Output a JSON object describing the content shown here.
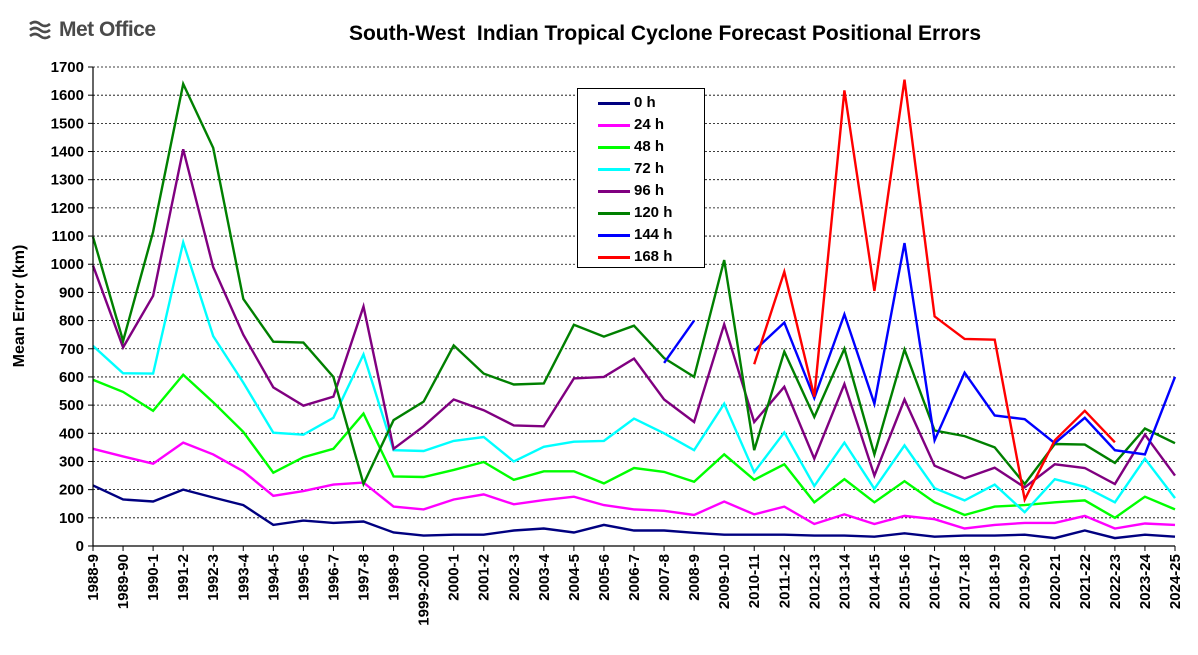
{
  "logo": {
    "text": "Met Office"
  },
  "chart_data": {
    "type": "line",
    "title": "South-West  Indian Tropical Cyclone Forecast Positional Errors",
    "xlabel": "",
    "ylabel": "Mean Error (km)",
    "ylim": [
      0,
      1700
    ],
    "yticks": [
      0,
      100,
      200,
      300,
      400,
      500,
      600,
      700,
      800,
      900,
      1000,
      1100,
      1200,
      1300,
      1400,
      1500,
      1600,
      1700
    ],
    "grid": true,
    "legend_position": "top-center",
    "categories": [
      "1988-9",
      "1989-90",
      "1990-1",
      "1991-2",
      "1992-3",
      "1993-4",
      "1994-5",
      "1995-6",
      "1996-7",
      "1997-8",
      "1998-9",
      "1999-2000",
      "2000-1",
      "2001-2",
      "2002-3",
      "2003-4",
      "2004-5",
      "2005-6",
      "2006-7",
      "2007-8",
      "2008-9",
      "2009-10",
      "2010-11",
      "2011-12",
      "2012-13",
      "2013-14",
      "2014-15",
      "2015-16",
      "2016-17",
      "2017-18",
      "2018-19",
      "2019-20",
      "2020-21",
      "2021-22",
      "2022-23",
      "2023-24",
      "2024-25"
    ],
    "series": [
      {
        "name": "0 h",
        "color": "#000080",
        "values": [
          215,
          165,
          158,
          200,
          172,
          145,
          75,
          90,
          82,
          87,
          48,
          37,
          40,
          40,
          55,
          62,
          48,
          75,
          55,
          55,
          47,
          40,
          40,
          40,
          37,
          37,
          33,
          45,
          33,
          37,
          37,
          40,
          28,
          55,
          28,
          40,
          33
        ]
      },
      {
        "name": "24 h",
        "color": "#FF00FF",
        "values": [
          345,
          318,
          292,
          367,
          325,
          265,
          178,
          195,
          218,
          225,
          140,
          130,
          165,
          183,
          148,
          163,
          175,
          145,
          130,
          125,
          110,
          158,
          112,
          140,
          78,
          112,
          78,
          107,
          95,
          62,
          75,
          82,
          82,
          107,
          62,
          80,
          75
        ]
      },
      {
        "name": "48 h",
        "color": "#00FF00",
        "values": [
          590,
          547,
          480,
          608,
          510,
          405,
          260,
          315,
          345,
          470,
          247,
          245,
          270,
          298,
          235,
          265,
          265,
          222,
          277,
          263,
          228,
          325,
          235,
          290,
          155,
          237,
          155,
          230,
          155,
          110,
          140,
          145,
          155,
          162,
          100,
          175,
          130
        ]
      },
      {
        "name": "72 h",
        "color": "#00FFFF",
        "values": [
          710,
          613,
          612,
          1078,
          745,
          580,
          402,
          395,
          455,
          680,
          340,
          337,
          373,
          387,
          300,
          352,
          370,
          373,
          452,
          400,
          340,
          505,
          262,
          403,
          213,
          367,
          203,
          357,
          205,
          162,
          218,
          120,
          237,
          210,
          155,
          310,
          170
        ]
      },
      {
        "name": "96 h",
        "color": "#800080",
        "values": [
          995,
          705,
          888,
          1408,
          990,
          750,
          563,
          498,
          530,
          850,
          345,
          425,
          520,
          482,
          428,
          425,
          595,
          600,
          665,
          520,
          440,
          787,
          440,
          565,
          310,
          575,
          250,
          520,
          285,
          240,
          278,
          208,
          290,
          277,
          220,
          395,
          250
        ]
      },
      {
        "name": "120 h",
        "color": "#008000",
        "values": [
          1097,
          728,
          1115,
          1640,
          1413,
          877,
          725,
          722,
          600,
          220,
          447,
          512,
          712,
          612,
          573,
          577,
          785,
          743,
          782,
          667,
          600,
          1015,
          340,
          690,
          458,
          700,
          325,
          697,
          410,
          390,
          350,
          220,
          362,
          360,
          295,
          417,
          365
        ]
      },
      {
        "name": "144 h",
        "color": "#0000FF",
        "values": [
          null,
          null,
          null,
          null,
          null,
          null,
          null,
          null,
          null,
          null,
          null,
          null,
          null,
          null,
          null,
          null,
          null,
          null,
          null,
          650,
          800,
          null,
          693,
          793,
          525,
          822,
          505,
          1075,
          375,
          615,
          463,
          450,
          365,
          455,
          340,
          325,
          600
        ]
      },
      {
        "name": "168 h",
        "color": "#FF0000",
        "values": [
          null,
          null,
          null,
          null,
          null,
          null,
          null,
          null,
          null,
          null,
          null,
          null,
          null,
          null,
          null,
          null,
          null,
          null,
          null,
          null,
          null,
          null,
          645,
          973,
          530,
          1617,
          905,
          1655,
          815,
          735,
          732,
          165,
          375,
          480,
          368,
          null,
          null
        ]
      }
    ]
  }
}
